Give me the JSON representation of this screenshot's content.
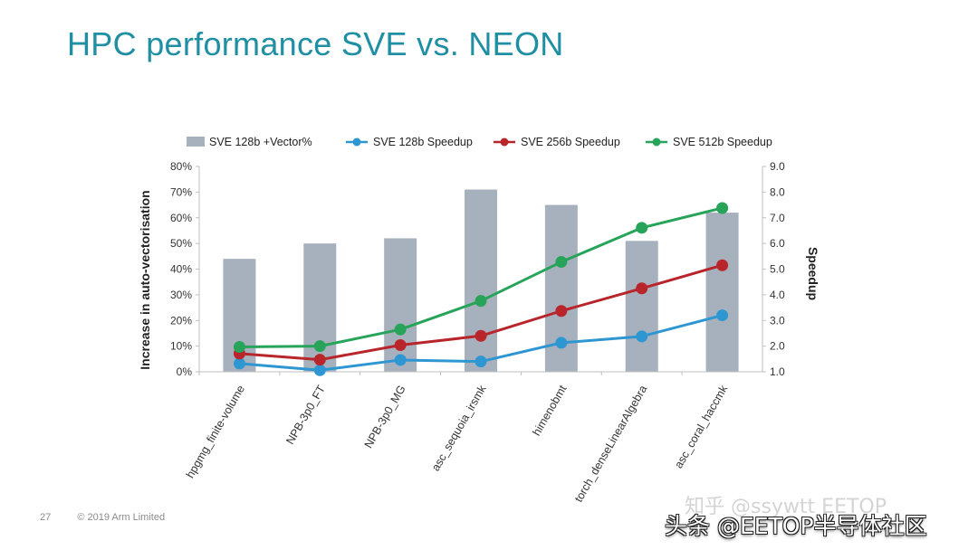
{
  "slide": {
    "title": "HPC performance SVE vs. NEON",
    "page_number": "27",
    "copyright": "© 2019 Arm Limited",
    "watermark_faint": "知乎 @ssywtt EETOP",
    "watermark_bold": "头条 @EETOP半导体社区"
  },
  "chart_data": {
    "type": "bar+line",
    "categories": [
      "hpgmg_finite-volume",
      "NPB-3p0_FT",
      "NPB-3p0_MG",
      "asc_sequoia_irsmk",
      "himenobmt",
      "torch_denseLinearAlgebra",
      "asc_coral_haccmk"
    ],
    "bars": {
      "name": "SVE 128b +Vector%",
      "values": [
        44,
        50,
        52,
        71,
        65,
        51,
        62
      ],
      "color": "#a7b1bd"
    },
    "series": [
      {
        "name": "SVE 128b Speedup",
        "values": [
          1.32,
          1.06,
          1.46,
          1.4,
          2.13,
          2.38,
          3.2
        ],
        "color": "#2e97d2"
      },
      {
        "name": "SVE 256b Speedup",
        "values": [
          1.71,
          1.47,
          2.04,
          2.4,
          3.37,
          4.25,
          5.15
        ],
        "color": "#b8252b"
      },
      {
        "name": "SVE 512b Speedup",
        "values": [
          1.97,
          2.0,
          2.65,
          3.76,
          5.28,
          6.61,
          7.38
        ],
        "color": "#27a45a"
      }
    ],
    "y_left": {
      "label": "Increase in auto-vectorisation",
      "ticks": [
        "0%",
        "10%",
        "20%",
        "30%",
        "40%",
        "50%",
        "60%",
        "70%",
        "80%"
      ],
      "range": [
        0,
        80
      ]
    },
    "y_right": {
      "label": "Speedup",
      "ticks": [
        "1.0",
        "2.0",
        "3.0",
        "4.0",
        "5.0",
        "6.0",
        "7.0",
        "8.0",
        "9.0"
      ],
      "range": [
        1,
        9
      ]
    },
    "legend_position": "top",
    "gridlines": false
  }
}
